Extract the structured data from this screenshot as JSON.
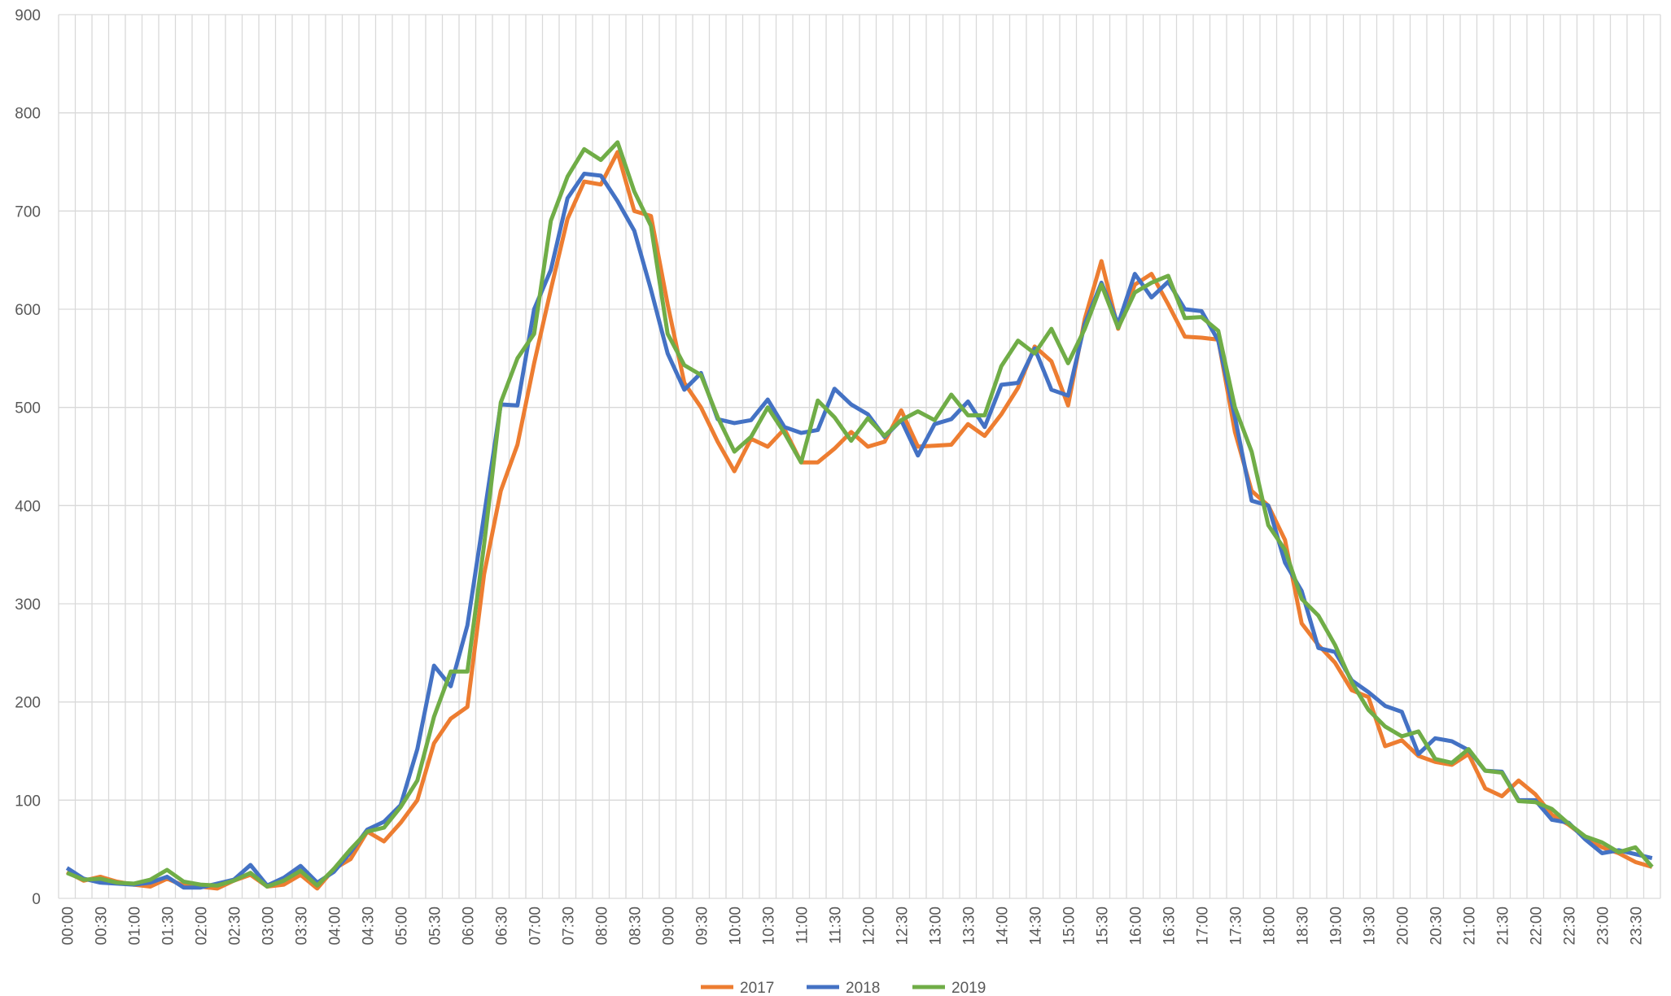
{
  "chart_data": {
    "type": "line",
    "categories": [
      "00:00",
      null,
      "00:30",
      null,
      "01:00",
      null,
      "01:30",
      null,
      "02:00",
      null,
      "02:30",
      null,
      "03:00",
      null,
      "03:30",
      null,
      "04:00",
      null,
      "04:30",
      null,
      "05:00",
      null,
      "05:30",
      null,
      "06:00",
      null,
      "06:30",
      null,
      "07:00",
      null,
      "07:30",
      null,
      "08:00",
      null,
      "08:30",
      null,
      "09:00",
      null,
      "09:30",
      null,
      "10:00",
      null,
      "10:30",
      null,
      "11:00",
      null,
      "11:30",
      null,
      "12:00",
      null,
      "12:30",
      null,
      "13:00",
      null,
      "13:30",
      null,
      "14:00",
      null,
      "14:30",
      null,
      "15:00",
      null,
      "15:30",
      null,
      "16:00",
      null,
      "16:30",
      null,
      "17:00",
      null,
      "17:30",
      null,
      "18:00",
      null,
      "18:30",
      null,
      "19:00",
      null,
      "19:30",
      null,
      "20:00",
      null,
      "20:30",
      null,
      "21:00",
      null,
      "21:30",
      null,
      "22:00",
      null,
      "22:30",
      null,
      "23:00",
      null,
      "23:30",
      null
    ],
    "series": [
      {
        "name": "2017",
        "color": "#ED7D31",
        "values": [
          27,
          18,
          22,
          17,
          14,
          12,
          20,
          13,
          12,
          10,
          18,
          24,
          12,
          14,
          24,
          10,
          30,
          40,
          68,
          58,
          77,
          100,
          158,
          183,
          195,
          330,
          415,
          462,
          545,
          620,
          692,
          730,
          727,
          760,
          700,
          695,
          605,
          525,
          500,
          465,
          435,
          468,
          460,
          478,
          444,
          444,
          458,
          475,
          460,
          465,
          497,
          460,
          461,
          462,
          483,
          471,
          493,
          520,
          562,
          547,
          502,
          590,
          649,
          580,
          625,
          636,
          605,
          572,
          571,
          569,
          475,
          415,
          400,
          365,
          280,
          258,
          240,
          212,
          205,
          155,
          161,
          145,
          139,
          136,
          147,
          112,
          104,
          120,
          106,
          85,
          75,
          62,
          52,
          46,
          37,
          32
        ]
      },
      {
        "name": "2018",
        "color": "#4472C4",
        "values": [
          31,
          20,
          16,
          15,
          14,
          16,
          22,
          11,
          11,
          15,
          19,
          34,
          13,
          21,
          33,
          16,
          27,
          47,
          70,
          78,
          95,
          152,
          237,
          216,
          278,
          390,
          503,
          502,
          600,
          640,
          713,
          738,
          736,
          710,
          680,
          620,
          555,
          518,
          535,
          488,
          484,
          487,
          508,
          480,
          474,
          477,
          519,
          503,
          493,
          470,
          487,
          451,
          483,
          488,
          506,
          480,
          523,
          525,
          560,
          518,
          512,
          585,
          627,
          585,
          636,
          612,
          628,
          600,
          598,
          568,
          490,
          405,
          400,
          342,
          313,
          255,
          251,
          222,
          210,
          196,
          190,
          147,
          163,
          160,
          151,
          130,
          129,
          100,
          100,
          80,
          77,
          60,
          46,
          49,
          45,
          41
        ]
      },
      {
        "name": "2019",
        "color": "#70AD47",
        "values": [
          26,
          19,
          20,
          16,
          15,
          19,
          29,
          17,
          14,
          13,
          18,
          26,
          12,
          18,
          28,
          13,
          30,
          50,
          68,
          72,
          93,
          120,
          185,
          231,
          231,
          360,
          505,
          550,
          575,
          690,
          735,
          763,
          752,
          770,
          720,
          685,
          575,
          543,
          533,
          490,
          455,
          470,
          500,
          474,
          444,
          507,
          490,
          466,
          489,
          471,
          487,
          496,
          487,
          513,
          492,
          492,
          542,
          568,
          555,
          580,
          545,
          580,
          625,
          581,
          617,
          627,
          634,
          591,
          592,
          578,
          500,
          455,
          380,
          355,
          305,
          288,
          258,
          220,
          192,
          175,
          165,
          170,
          142,
          138,
          152,
          130,
          128,
          99,
          98,
          91,
          76,
          63,
          57,
          47,
          52,
          32
        ]
      }
    ],
    "ylim": [
      0,
      900
    ],
    "yticks": [
      0,
      100,
      200,
      300,
      400,
      500,
      600,
      700,
      800,
      900
    ],
    "grid": true,
    "legend": "bottom"
  }
}
